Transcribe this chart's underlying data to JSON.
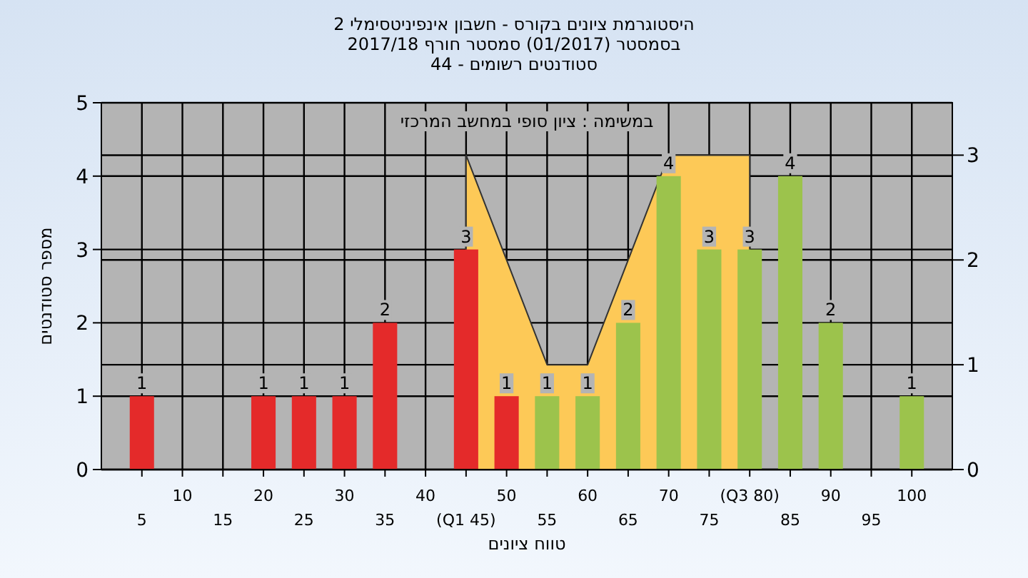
{
  "chart_data": {
    "type": "bar",
    "title": "היסטוגרמת ציונים בקורס - חשבון אינפיניטסימלי 2",
    "subtitle": "בסמסטר  (01/2017)  סמסטר חורף 2017/18\nסטודנטים רשומים - 44",
    "xlabel": "טווח ציונים",
    "ylabel": "מספר סטודנטים",
    "annotations": [
      "במשימה : ציון סופי במחשב המרכזי"
    ],
    "categories": [
      "5",
      "10",
      "15",
      "20",
      "25",
      "30",
      "35",
      "40",
      "(Q1 45)",
      "50",
      "55",
      "60",
      "65",
      "70",
      "75",
      "(Q3 80)",
      "85",
      "90",
      "95",
      "100"
    ],
    "series": [
      {
        "values": [
          1,
          null,
          null,
          1,
          1,
          1,
          2,
          null,
          3,
          1,
          1,
          1,
          2,
          4,
          3,
          3,
          4,
          2,
          null,
          1
        ],
        "colors": [
          "#e42a2a",
          "#e42a2a",
          "#e42a2a",
          "#e42a2a",
          "#e42a2a",
          "#e42a2a",
          "#e42a2a",
          "#e42a2a",
          "#e42a2a",
          "#e42a2a",
          "#9cc34c",
          "#9cc34c",
          "#9cc34c",
          "#9cc34c",
          "#9cc34c",
          "#9cc34c",
          "#9cc34c",
          "#9cc34c",
          "#9cc34c",
          "#9cc34c"
        ],
        "value_labels": [
          "1",
          null,
          null,
          "1",
          "1",
          "1",
          "2",
          null,
          "3",
          "1",
          "1",
          "1",
          "2",
          "4",
          "3",
          "3",
          "4",
          "2",
          null,
          "1"
        ]
      },
      {
        "type": "area",
        "axis": "y2",
        "color": "#fdc957",
        "values": [
          null,
          null,
          null,
          null,
          null,
          null,
          null,
          null,
          3,
          2,
          1,
          1,
          2,
          3,
          3,
          3,
          null,
          null,
          null,
          null
        ]
      }
    ],
    "ylim": [
      0,
      5
    ],
    "yticks": [
      0,
      1,
      2,
      3,
      4,
      5
    ],
    "y2lim": [
      0,
      3.5
    ],
    "y2ticks": [
      0,
      1,
      2,
      3
    ],
    "grid": true
  }
}
